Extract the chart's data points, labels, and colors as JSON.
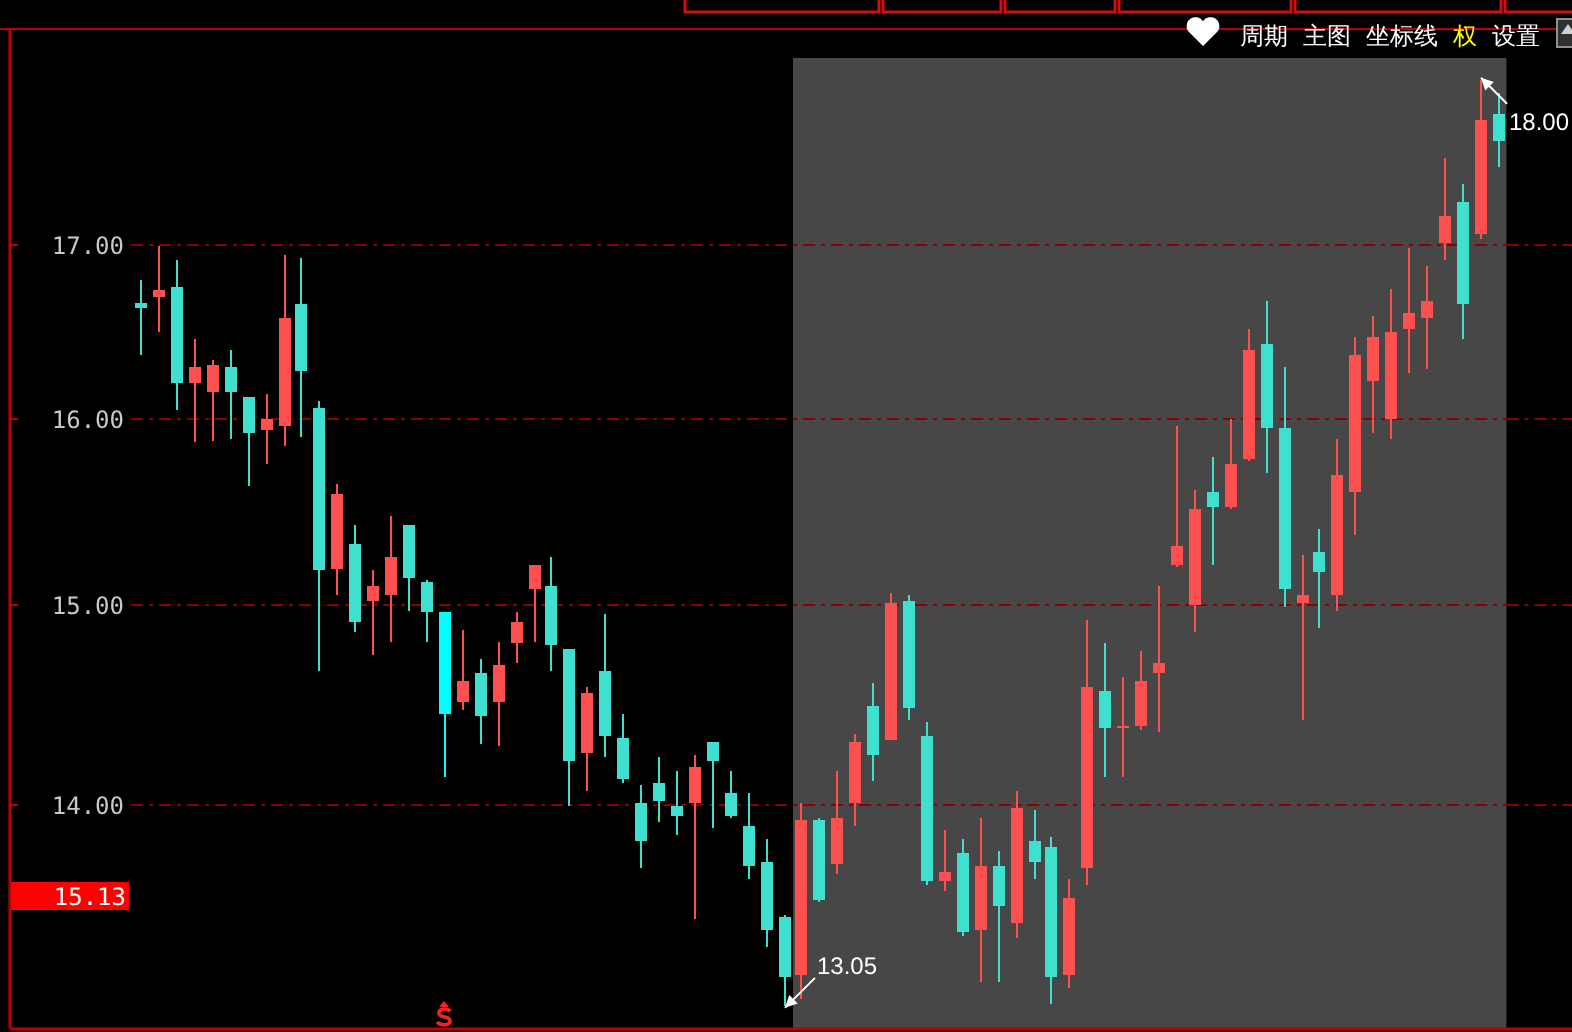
{
  "chart_data": {
    "type": "candlestick",
    "categories": [
      null,
      null,
      null,
      null,
      null,
      null,
      null,
      null,
      null,
      null,
      null,
      null,
      null,
      null,
      null,
      null,
      null,
      null,
      null,
      null,
      null,
      null,
      null,
      null,
      null,
      null,
      null,
      null,
      null,
      null,
      null,
      null,
      null,
      null,
      null,
      null,
      null,
      null,
      null,
      null,
      null,
      null,
      null,
      null,
      null,
      null,
      null,
      null,
      null,
      null,
      null,
      null,
      null,
      null,
      null,
      null,
      null,
      null,
      null,
      null,
      null,
      null,
      null,
      null,
      null,
      null,
      null,
      null,
      null,
      null,
      null,
      null,
      null,
      null,
      null,
      null,
      null
    ],
    "ohlc": [
      [
        16.66,
        16.79,
        16.36,
        16.63
      ],
      [
        16.69,
        16.99,
        16.49,
        16.73
      ],
      [
        16.75,
        16.91,
        16.05,
        16.2
      ],
      [
        16.2,
        16.45,
        15.87,
        16.29
      ],
      [
        16.15,
        16.33,
        15.88,
        16.3
      ],
      [
        16.29,
        16.39,
        15.89,
        16.15
      ],
      [
        16.12,
        16.12,
        15.63,
        15.92
      ],
      [
        15.94,
        16.14,
        15.75,
        16.0
      ],
      [
        15.96,
        16.94,
        15.85,
        16.57
      ],
      [
        16.65,
        16.92,
        15.9,
        16.27
      ],
      [
        16.06,
        16.1,
        14.66,
        15.18
      ],
      [
        15.19,
        15.64,
        15.05,
        15.59
      ],
      [
        15.32,
        15.42,
        14.86,
        14.91
      ],
      [
        15.02,
        15.18,
        14.74,
        15.1
      ],
      [
        15.05,
        15.47,
        14.81,
        15.25
      ],
      [
        15.42,
        15.42,
        14.97,
        15.14
      ],
      [
        15.12,
        15.13,
        14.81,
        14.96
      ],
      [
        14.96,
        14.96,
        14.13,
        14.44
      ],
      [
        14.5,
        14.87,
        14.46,
        14.61
      ],
      [
        14.65,
        14.72,
        14.29,
        14.43
      ],
      [
        14.5,
        14.81,
        14.28,
        14.69
      ],
      [
        14.8,
        14.96,
        14.7,
        14.91
      ],
      [
        15.08,
        15.21,
        14.81,
        15.21
      ],
      [
        15.1,
        15.25,
        14.66,
        14.79
      ],
      [
        14.77,
        14.77,
        13.99,
        14.21
      ],
      [
        14.25,
        14.58,
        14.06,
        14.55
      ],
      [
        14.66,
        14.95,
        14.23,
        14.33
      ],
      [
        14.32,
        14.44,
        14.1,
        14.12
      ],
      [
        14.0,
        14.09,
        13.69,
        13.82
      ],
      [
        14.1,
        14.23,
        13.91,
        14.01
      ],
      [
        13.99,
        14.16,
        13.85,
        13.94
      ],
      [
        14.0,
        14.24,
        13.45,
        14.18
      ],
      [
        14.3,
        14.3,
        13.88,
        14.21
      ],
      [
        14.05,
        14.16,
        13.93,
        13.94
      ],
      [
        13.89,
        14.05,
        13.64,
        13.7
      ],
      [
        13.72,
        13.83,
        13.32,
        13.4
      ],
      [
        13.46,
        13.47,
        13.05,
        13.18
      ],
      [
        13.19,
        14.0,
        13.08,
        13.92
      ],
      [
        13.92,
        13.93,
        13.53,
        13.54
      ],
      [
        13.71,
        14.16,
        13.66,
        13.93
      ],
      [
        14.0,
        14.34,
        13.89,
        14.3
      ],
      [
        14.48,
        14.6,
        14.11,
        14.24
      ],
      [
        14.31,
        15.06,
        14.31,
        15.01
      ],
      [
        15.02,
        15.05,
        14.41,
        14.47
      ],
      [
        14.33,
        14.4,
        13.61,
        13.63
      ],
      [
        13.63,
        13.87,
        13.58,
        13.67
      ],
      [
        13.76,
        13.83,
        13.37,
        13.39
      ],
      [
        13.4,
        13.93,
        13.16,
        13.7
      ],
      [
        13.7,
        13.77,
        13.16,
        13.51
      ],
      [
        13.43,
        14.06,
        13.36,
        13.98
      ],
      [
        13.82,
        13.97,
        13.64,
        13.72
      ],
      [
        13.79,
        13.84,
        13.06,
        13.18
      ],
      [
        13.19,
        13.64,
        13.13,
        13.55
      ],
      [
        13.69,
        14.92,
        13.61,
        14.58
      ],
      [
        14.56,
        14.8,
        14.13,
        14.37
      ],
      [
        14.37,
        14.63,
        14.13,
        14.38
      ],
      [
        14.38,
        14.76,
        14.36,
        14.61
      ],
      [
        14.65,
        15.1,
        14.35,
        14.7
      ],
      [
        15.21,
        15.96,
        15.2,
        15.31
      ],
      [
        15.0,
        15.61,
        14.86,
        15.51
      ],
      [
        15.6,
        15.79,
        15.21,
        15.52
      ],
      [
        15.52,
        16.0,
        15.51,
        15.75
      ],
      [
        15.78,
        16.51,
        15.77,
        16.39
      ],
      [
        16.42,
        16.67,
        15.7,
        15.95
      ],
      [
        15.95,
        16.29,
        14.99,
        15.08
      ],
      [
        15.01,
        15.26,
        14.41,
        15.05
      ],
      [
        15.28,
        15.4,
        14.88,
        15.17
      ],
      [
        15.05,
        15.89,
        14.97,
        15.69
      ],
      [
        15.6,
        16.46,
        15.37,
        16.36
      ],
      [
        16.21,
        16.58,
        15.92,
        16.46
      ],
      [
        16.0,
        16.74,
        15.89,
        16.49
      ],
      [
        16.51,
        16.98,
        16.26,
        16.6
      ],
      [
        16.57,
        16.87,
        16.28,
        16.67
      ],
      [
        17.01,
        17.52,
        16.91,
        17.17
      ],
      [
        17.25,
        17.36,
        16.45,
        16.65
      ],
      [
        17.06,
        18.0,
        17.03,
        17.75
      ],
      [
        17.79,
        17.92,
        17.46,
        17.62
      ]
    ],
    "colors": [
      "#40e0d0",
      "#ff5050",
      "#40e0d0",
      "#ff5050",
      "#ff5050",
      "#40e0d0",
      "#40e0d0",
      "#ff5050",
      "#ff5050",
      "#40e0d0",
      "#40e0d0",
      "#ff5050",
      "#40e0d0",
      "#ff5050",
      "#ff5050",
      "#40e0d0",
      "#40e0d0",
      "#00ffff",
      "#ff5050",
      "#40e0d0",
      "#ff5050",
      "#ff5050",
      "#ff5050",
      "#40e0d0",
      "#40e0d0",
      "#ff5050",
      "#40e0d0",
      "#40e0d0",
      "#40e0d0",
      "#40e0d0",
      "#40e0d0",
      "#ff5050",
      "#40e0d0",
      "#40e0d0",
      "#40e0d0",
      "#40e0d0",
      "#40e0d0",
      "#ff5050",
      "#40e0d0",
      "#ff5050",
      "#ff5050",
      "#40e0d0",
      "#ff5050",
      "#40e0d0",
      "#40e0d0",
      "#ff5050",
      "#40e0d0",
      "#ff5050",
      "#40e0d0",
      "#ff5050",
      "#40e0d0",
      "#40e0d0",
      "#ff5050",
      "#ff5050",
      "#40e0d0",
      "#ff5050",
      "#ff5050",
      "#ff5050",
      "#ff5050",
      "#ff5050",
      "#40e0d0",
      "#ff5050",
      "#ff5050",
      "#40e0d0",
      "#40e0d0",
      "#ff5050",
      "#40e0d0",
      "#ff5050",
      "#ff5050",
      "#ff5050",
      "#ff5050",
      "#ff5050",
      "#ff5050",
      "#ff5050",
      "#40e0d0",
      "#ff5050",
      "#40e0d0"
    ],
    "log": "y",
    "ylim": [
      12.95,
      18.32
    ],
    "yticks": [
      {
        "value": 14,
        "label": "14.00"
      },
      {
        "value": 15,
        "label": "15.00"
      },
      {
        "value": 16,
        "label": "16.00"
      },
      {
        "value": 17,
        "label": "17.00"
      }
    ],
    "grid": "y",
    "tick_labels": "y",
    "annotations": [
      "13.05",
      "18.00",
      "15.13",
      "周期",
      "主图",
      "坐标线",
      "权",
      "设置"
    ]
  }
}
